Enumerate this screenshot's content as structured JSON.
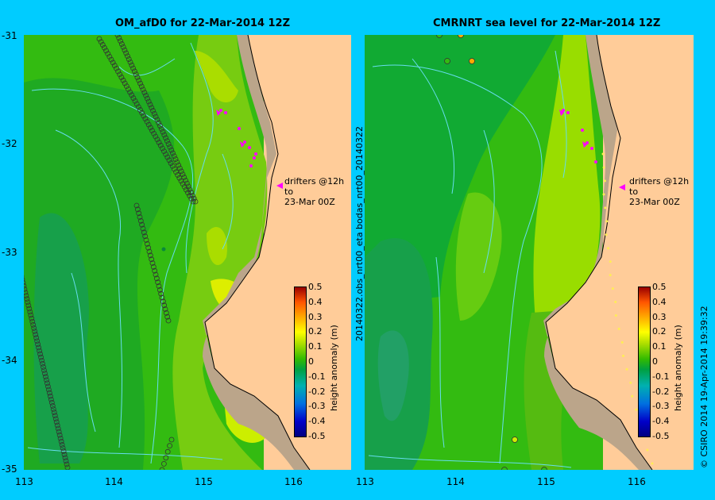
{
  "titles": {
    "left": "OM_afD0 for 22-Mar-2014 12Z",
    "right": "CMRNRT sea level  for 22-Mar-2014 12Z"
  },
  "lat_ticks": [
    "-31",
    "-32",
    "-33",
    "-34",
    "-35"
  ],
  "lon_ticks": [
    "113",
    "114",
    "115",
    "116"
  ],
  "colorbar": {
    "label": "height anomaly (m)",
    "ticks": [
      "0.5",
      "0.4",
      "0.3",
      "0.2",
      "0.1",
      "0",
      "-0.1",
      "-0.2",
      "-0.3",
      "-0.4",
      "-0.5"
    ]
  },
  "drifter_note": {
    "line1": "drifters @12h to",
    "line2": "23-Mar 00Z"
  },
  "side_label": "20140322.obs_nrt00_eta  bodas_nrt00_20140322",
  "credit": "© CSIRO 2014   19-Apr-2014 19:39:32",
  "colors": {
    "background": "#00ccff",
    "land": "#ffcc99",
    "shelf": "#bba58a",
    "current": "#66ddee",
    "drifter": "#ff00ff",
    "track": "#333333"
  }
}
